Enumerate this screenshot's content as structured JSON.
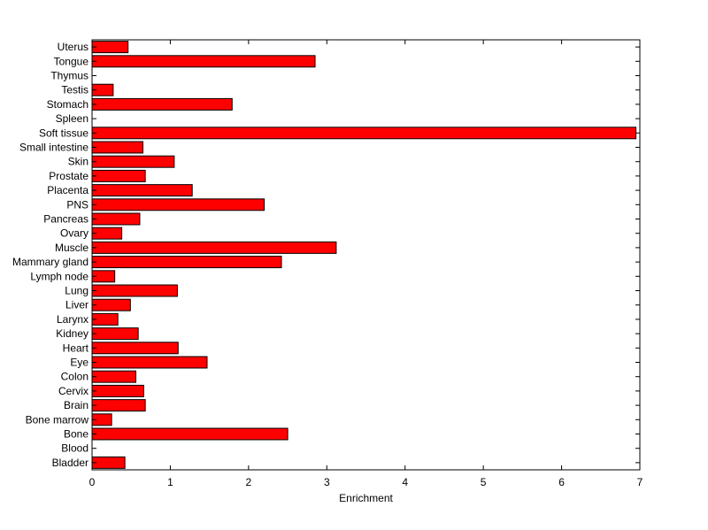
{
  "chart_data": {
    "type": "bar",
    "orientation": "horizontal",
    "xlabel": "Enrichment",
    "ylabel": "",
    "title": "",
    "xlim": [
      0,
      7
    ],
    "xticks": [
      0,
      1,
      2,
      3,
      4,
      5,
      6,
      7
    ],
    "grid": false,
    "bar_color": "#ff0000",
    "categories": [
      "Bladder",
      "Blood",
      "Bone",
      "Bone marrow",
      "Brain",
      "Cervix",
      "Colon",
      "Eye",
      "Heart",
      "Kidney",
      "Larynx",
      "Liver",
      "Lung",
      "Lymph node",
      "Mammary gland",
      "Muscle",
      "Ovary",
      "Pancreas",
      "PNS",
      "Placenta",
      "Prostate",
      "Skin",
      "Small intestine",
      "Soft tissue",
      "Spleen",
      "Stomach",
      "Testis",
      "Thymus",
      "Tongue",
      "Uterus"
    ],
    "values": [
      0.42,
      0.0,
      2.5,
      0.25,
      0.68,
      0.66,
      0.56,
      1.47,
      1.1,
      0.59,
      0.33,
      0.49,
      1.09,
      0.29,
      2.42,
      3.12,
      0.38,
      0.61,
      2.2,
      1.28,
      0.68,
      1.05,
      0.65,
      6.95,
      0.0,
      1.79,
      0.27,
      0.0,
      2.85,
      0.46
    ]
  }
}
